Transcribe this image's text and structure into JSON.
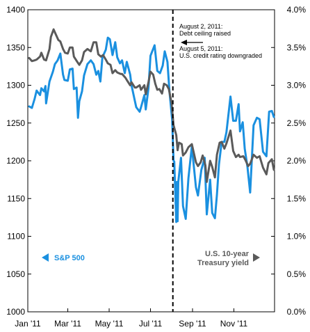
{
  "chart_data": {
    "type": "line",
    "title": "",
    "xlabel": "",
    "ylabel": "",
    "x_tick_labels": [
      "Jan '11",
      "Mar '11",
      "May '11",
      "Jul '11",
      "Sep '11",
      "Nov '11"
    ],
    "x_ticks": [
      "2011-01-01",
      "2011-03-01",
      "2011-05-01",
      "2011-07-01",
      "2011-09-01",
      "2011-11-01"
    ],
    "xlim": [
      "2011-01-01",
      "2011-12-31"
    ],
    "y_left": {
      "lim": [
        1000,
        1400
      ],
      "ticks": [
        1000,
        1050,
        1100,
        1150,
        1200,
        1250,
        1300,
        1350,
        1400
      ],
      "tick_labels": [
        "1000",
        "1050",
        "1100",
        "1150",
        "1200",
        "1250",
        "1300",
        "1350",
        "1400"
      ]
    },
    "y_right": {
      "lim": [
        0.0,
        4.0
      ],
      "ticks": [
        0.0,
        0.5,
        1.0,
        1.5,
        2.0,
        2.5,
        3.0,
        3.5,
        4.0
      ],
      "tick_labels": [
        "0.0%",
        "0.5%",
        "1.0%",
        "1.5%",
        "2.0%",
        "2.5%",
        "3.0%",
        "3.5%",
        "4.0%"
      ]
    },
    "grid": false,
    "series": [
      {
        "name": "S&P 500",
        "axis": "left",
        "color": "#1a90e0",
        "points": [
          [
            "2011-01-03",
            1272
          ],
          [
            "2011-01-07",
            1270
          ],
          [
            "2011-01-11",
            1282
          ],
          [
            "2011-01-14",
            1293
          ],
          [
            "2011-01-19",
            1287
          ],
          [
            "2011-01-21",
            1296
          ],
          [
            "2011-01-25",
            1292
          ],
          [
            "2011-01-27",
            1299
          ],
          [
            "2011-01-28",
            1276
          ],
          [
            "2011-02-02",
            1305
          ],
          [
            "2011-02-07",
            1318
          ],
          [
            "2011-02-10",
            1328
          ],
          [
            "2011-02-14",
            1333
          ],
          [
            "2011-02-18",
            1342
          ],
          [
            "2011-02-22",
            1314
          ],
          [
            "2011-02-24",
            1307
          ],
          [
            "2011-03-01",
            1306
          ],
          [
            "2011-03-04",
            1321
          ],
          [
            "2011-03-08",
            1322
          ],
          [
            "2011-03-10",
            1295
          ],
          [
            "2011-03-14",
            1297
          ],
          [
            "2011-03-16",
            1257
          ],
          [
            "2011-03-18",
            1279
          ],
          [
            "2011-03-22",
            1292
          ],
          [
            "2011-03-25",
            1313
          ],
          [
            "2011-03-30",
            1328
          ],
          [
            "2011-04-04",
            1333
          ],
          [
            "2011-04-08",
            1328
          ],
          [
            "2011-04-12",
            1314
          ],
          [
            "2011-04-15",
            1319
          ],
          [
            "2011-04-18",
            1305
          ],
          [
            "2011-04-21",
            1337
          ],
          [
            "2011-04-26",
            1347
          ],
          [
            "2011-04-29",
            1363
          ],
          [
            "2011-05-02",
            1361
          ],
          [
            "2011-05-06",
            1340
          ],
          [
            "2011-05-10",
            1357
          ],
          [
            "2011-05-13",
            1337
          ],
          [
            "2011-05-17",
            1329
          ],
          [
            "2011-05-20",
            1333
          ],
          [
            "2011-05-24",
            1316
          ],
          [
            "2011-05-27",
            1331
          ],
          [
            "2011-06-01",
            1314
          ],
          [
            "2011-06-03",
            1300
          ],
          [
            "2011-06-08",
            1279
          ],
          [
            "2011-06-10",
            1271
          ],
          [
            "2011-06-15",
            1265
          ],
          [
            "2011-06-17",
            1271
          ],
          [
            "2011-06-22",
            1287
          ],
          [
            "2011-06-24",
            1268
          ],
          [
            "2011-06-28",
            1296
          ],
          [
            "2011-07-01",
            1339
          ],
          [
            "2011-07-07",
            1353
          ],
          [
            "2011-07-11",
            1319
          ],
          [
            "2011-07-15",
            1316
          ],
          [
            "2011-07-19",
            1326
          ],
          [
            "2011-07-22",
            1345
          ],
          [
            "2011-07-26",
            1331
          ],
          [
            "2011-07-29",
            1292
          ],
          [
            "2011-08-02",
            1254
          ],
          [
            "2011-08-04",
            1200
          ],
          [
            "2011-08-05",
            1199
          ],
          [
            "2011-08-08",
            1119
          ],
          [
            "2011-08-09",
            1172
          ],
          [
            "2011-08-10",
            1120
          ],
          [
            "2011-08-11",
            1172
          ],
          [
            "2011-08-15",
            1204
          ],
          [
            "2011-08-18",
            1140
          ],
          [
            "2011-08-22",
            1123
          ],
          [
            "2011-08-26",
            1177
          ],
          [
            "2011-08-31",
            1219
          ],
          [
            "2011-09-06",
            1165
          ],
          [
            "2011-09-09",
            1154
          ],
          [
            "2011-09-14",
            1188
          ],
          [
            "2011-09-19",
            1204
          ],
          [
            "2011-09-22",
            1129
          ],
          [
            "2011-09-27",
            1175
          ],
          [
            "2011-09-30",
            1131
          ],
          [
            "2011-10-04",
            1124
          ],
          [
            "2011-10-07",
            1155
          ],
          [
            "2011-10-10",
            1195
          ],
          [
            "2011-10-14",
            1225
          ],
          [
            "2011-10-18",
            1225
          ],
          [
            "2011-10-21",
            1238
          ],
          [
            "2011-10-27",
            1285
          ],
          [
            "2011-10-31",
            1253
          ],
          [
            "2011-11-04",
            1253
          ],
          [
            "2011-11-08",
            1275
          ],
          [
            "2011-11-10",
            1239
          ],
          [
            "2011-11-14",
            1251
          ],
          [
            "2011-11-17",
            1216
          ],
          [
            "2011-11-21",
            1192
          ],
          [
            "2011-11-25",
            1158
          ],
          [
            "2011-11-30",
            1247
          ],
          [
            "2011-12-05",
            1257
          ],
          [
            "2011-12-09",
            1255
          ],
          [
            "2011-12-14",
            1212
          ],
          [
            "2011-12-19",
            1206
          ],
          [
            "2011-12-23",
            1265
          ],
          [
            "2011-12-27",
            1266
          ],
          [
            "2011-12-30",
            1258
          ]
        ]
      },
      {
        "name": "U.S. 10-year Treasury yield",
        "axis": "right",
        "color": "#5a5a5a",
        "points": [
          [
            "2011-01-03",
            3.36
          ],
          [
            "2011-01-07",
            3.32
          ],
          [
            "2011-01-11",
            3.33
          ],
          [
            "2011-01-14",
            3.34
          ],
          [
            "2011-01-19",
            3.38
          ],
          [
            "2011-01-21",
            3.43
          ],
          [
            "2011-01-25",
            3.34
          ],
          [
            "2011-01-28",
            3.33
          ],
          [
            "2011-02-02",
            3.48
          ],
          [
            "2011-02-04",
            3.64
          ],
          [
            "2011-02-08",
            3.74
          ],
          [
            "2011-02-10",
            3.7
          ],
          [
            "2011-02-15",
            3.6
          ],
          [
            "2011-02-18",
            3.58
          ],
          [
            "2011-02-22",
            3.48
          ],
          [
            "2011-02-25",
            3.43
          ],
          [
            "2011-03-01",
            3.42
          ],
          [
            "2011-03-04",
            3.5
          ],
          [
            "2011-03-08",
            3.5
          ],
          [
            "2011-03-10",
            3.38
          ],
          [
            "2011-03-15",
            3.31
          ],
          [
            "2011-03-18",
            3.27
          ],
          [
            "2011-03-22",
            3.33
          ],
          [
            "2011-03-25",
            3.44
          ],
          [
            "2011-03-30",
            3.48
          ],
          [
            "2011-04-04",
            3.45
          ],
          [
            "2011-04-08",
            3.57
          ],
          [
            "2011-04-12",
            3.57
          ],
          [
            "2011-04-15",
            3.41
          ],
          [
            "2011-04-19",
            3.38
          ],
          [
            "2011-04-22",
            3.4
          ],
          [
            "2011-04-26",
            3.34
          ],
          [
            "2011-04-29",
            3.29
          ],
          [
            "2011-05-03",
            3.27
          ],
          [
            "2011-05-06",
            3.16
          ],
          [
            "2011-05-10",
            3.2
          ],
          [
            "2011-05-13",
            3.17
          ],
          [
            "2011-05-18",
            3.15
          ],
          [
            "2011-05-20",
            3.15
          ],
          [
            "2011-05-25",
            3.1
          ],
          [
            "2011-05-27",
            3.07
          ],
          [
            "2011-06-01",
            3.0
          ],
          [
            "2011-06-03",
            3.04
          ],
          [
            "2011-06-08",
            2.97
          ],
          [
            "2011-06-10",
            2.97
          ],
          [
            "2011-06-15",
            3.0
          ],
          [
            "2011-06-17",
            2.94
          ],
          [
            "2011-06-22",
            3.0
          ],
          [
            "2011-06-24",
            2.88
          ],
          [
            "2011-06-28",
            3.04
          ],
          [
            "2011-07-01",
            3.18
          ],
          [
            "2011-07-05",
            3.14
          ],
          [
            "2011-07-08",
            3.02
          ],
          [
            "2011-07-11",
            2.94
          ],
          [
            "2011-07-14",
            2.95
          ],
          [
            "2011-07-18",
            2.89
          ],
          [
            "2011-07-21",
            3.02
          ],
          [
            "2011-07-25",
            3.0
          ],
          [
            "2011-07-28",
            2.95
          ],
          [
            "2011-08-01",
            2.77
          ],
          [
            "2011-08-04",
            2.47
          ],
          [
            "2011-08-08",
            2.34
          ],
          [
            "2011-08-10",
            2.14
          ],
          [
            "2011-08-12",
            2.24
          ],
          [
            "2011-08-16",
            2.22
          ],
          [
            "2011-08-18",
            2.07
          ],
          [
            "2011-08-22",
            2.11
          ],
          [
            "2011-08-26",
            2.18
          ],
          [
            "2011-08-31",
            2.22
          ],
          [
            "2011-09-06",
            1.98
          ],
          [
            "2011-09-09",
            1.93
          ],
          [
            "2011-09-13",
            1.98
          ],
          [
            "2011-09-16",
            2.07
          ],
          [
            "2011-09-20",
            1.94
          ],
          [
            "2011-09-22",
            1.72
          ],
          [
            "2011-09-27",
            2.0
          ],
          [
            "2011-09-30",
            1.92
          ],
          [
            "2011-10-04",
            1.78
          ],
          [
            "2011-10-07",
            2.08
          ],
          [
            "2011-10-11",
            2.24
          ],
          [
            "2011-10-14",
            2.25
          ],
          [
            "2011-10-18",
            2.16
          ],
          [
            "2011-10-21",
            2.23
          ],
          [
            "2011-10-27",
            2.4
          ],
          [
            "2011-10-31",
            2.13
          ],
          [
            "2011-11-04",
            2.05
          ],
          [
            "2011-11-08",
            2.08
          ],
          [
            "2011-11-10",
            2.05
          ],
          [
            "2011-11-15",
            2.06
          ],
          [
            "2011-11-18",
            2.01
          ],
          [
            "2011-11-22",
            1.93
          ],
          [
            "2011-11-25",
            1.96
          ],
          [
            "2011-11-30",
            2.08
          ],
          [
            "2011-12-05",
            2.04
          ],
          [
            "2011-12-09",
            2.06
          ],
          [
            "2011-12-14",
            1.91
          ],
          [
            "2011-12-19",
            1.82
          ],
          [
            "2011-12-22",
            1.97
          ],
          [
            "2011-12-27",
            2.02
          ],
          [
            "2011-12-30",
            1.88
          ]
        ]
      }
    ],
    "annotations": [
      {
        "date": "2011-08-02",
        "lines": [
          "August 2, 2011:",
          "Debt ceiling raised"
        ]
      },
      {
        "date": "2011-08-05",
        "lines": [
          "August 5, 2011:",
          "U.S. credit rating downgraded"
        ]
      }
    ],
    "event_line_date": "2011-08-03",
    "legend": [
      {
        "label": "S&P 500",
        "side": "left",
        "color": "#1a90e0"
      },
      {
        "label_lines": [
          "U.S. 10-year",
          "Treasury yield"
        ],
        "side": "right",
        "color": "#5a5a5a"
      }
    ]
  }
}
